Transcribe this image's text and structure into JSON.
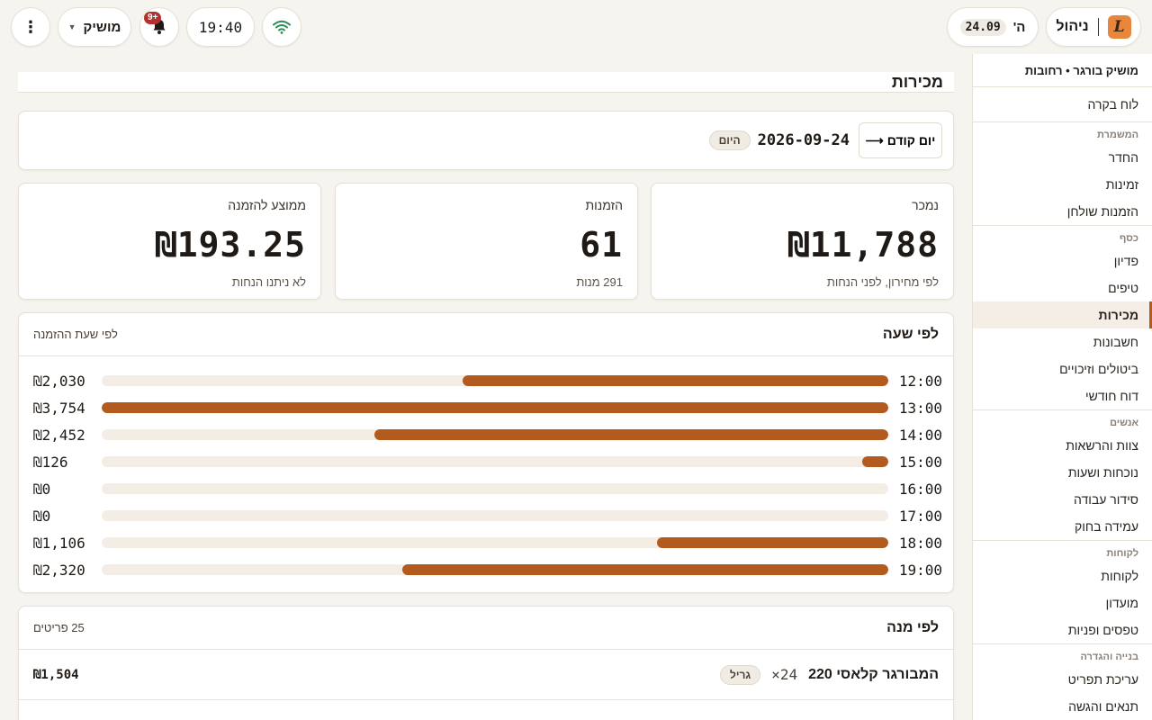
{
  "topbar": {
    "brand_logo": "L",
    "brand_label": "ניהול",
    "day": "ה'",
    "date_chip": "24.09",
    "user_name": "מושיק",
    "notifications_badge": "+9",
    "time": "19:40",
    "icons": {
      "menu": "kebab-menu-icon",
      "bell": "bell-icon",
      "wifi": "wifi-icon",
      "caret": "chevron-down-icon"
    },
    "wifi_color": "#2e8b57"
  },
  "sidebar": {
    "store": "מושיק בורגר • רחובות",
    "dashboard": "לוח בקרה",
    "sections": [
      {
        "title": "המשמרת",
        "items": [
          "החדר",
          "זמינות",
          "הזמנות שולחן"
        ]
      },
      {
        "title": "כסף",
        "items": [
          "פדיון",
          "טיפים",
          "מכירות",
          "חשבונות",
          "ביטולים וזיכויים",
          "דוח חודשי"
        ]
      },
      {
        "title": "אנשים",
        "items": [
          "צוות והרשאות",
          "נוכחות ושעות",
          "סידור עבודה",
          "עמידה בחוק"
        ]
      },
      {
        "title": "לקוחות",
        "items": [
          "לקוחות",
          "מועדון",
          "טפסים ופניות"
        ]
      },
      {
        "title": "בנייה והגדרה",
        "items": [
          "עריכת תפריט",
          "תנאים והגשה"
        ]
      }
    ],
    "active": "מכירות"
  },
  "page": {
    "title": "מכירות",
    "prev_day": "יום קודם",
    "current_date": "2026-09-24",
    "today_chip": "היום"
  },
  "stats": [
    {
      "label": "נמכר",
      "value": "₪11,788",
      "sub": "לפי מחירון, לפני הנחות"
    },
    {
      "label": "הזמנות",
      "value": "61",
      "sub": "291 מנות"
    },
    {
      "label": "ממוצע להזמנה",
      "value": "₪193.25",
      "sub": "לא ניתנו הנחות"
    }
  ],
  "hourly": {
    "title": "לפי שעה",
    "note": "לפי שעת ההזמנה",
    "max": 3754,
    "rows": [
      {
        "hour": "12:00",
        "value": 2030,
        "label": "₪2,030"
      },
      {
        "hour": "13:00",
        "value": 3754,
        "label": "₪3,754"
      },
      {
        "hour": "14:00",
        "value": 2452,
        "label": "₪2,452"
      },
      {
        "hour": "15:00",
        "value": 126,
        "label": "₪126"
      },
      {
        "hour": "16:00",
        "value": 0,
        "label": "₪0"
      },
      {
        "hour": "17:00",
        "value": 0,
        "label": "₪0"
      },
      {
        "hour": "18:00",
        "value": 1106,
        "label": "₪1,106"
      },
      {
        "hour": "19:00",
        "value": 2320,
        "label": "₪2,320"
      }
    ],
    "bar_color": "#b35a1f"
  },
  "dishes": {
    "title": "לפי מנה",
    "count": "25 פריטים",
    "rows": [
      {
        "name": "המבורגר קלאסי 220",
        "qty": "24×",
        "tag": "גריל",
        "price": "₪1,504"
      }
    ]
  }
}
